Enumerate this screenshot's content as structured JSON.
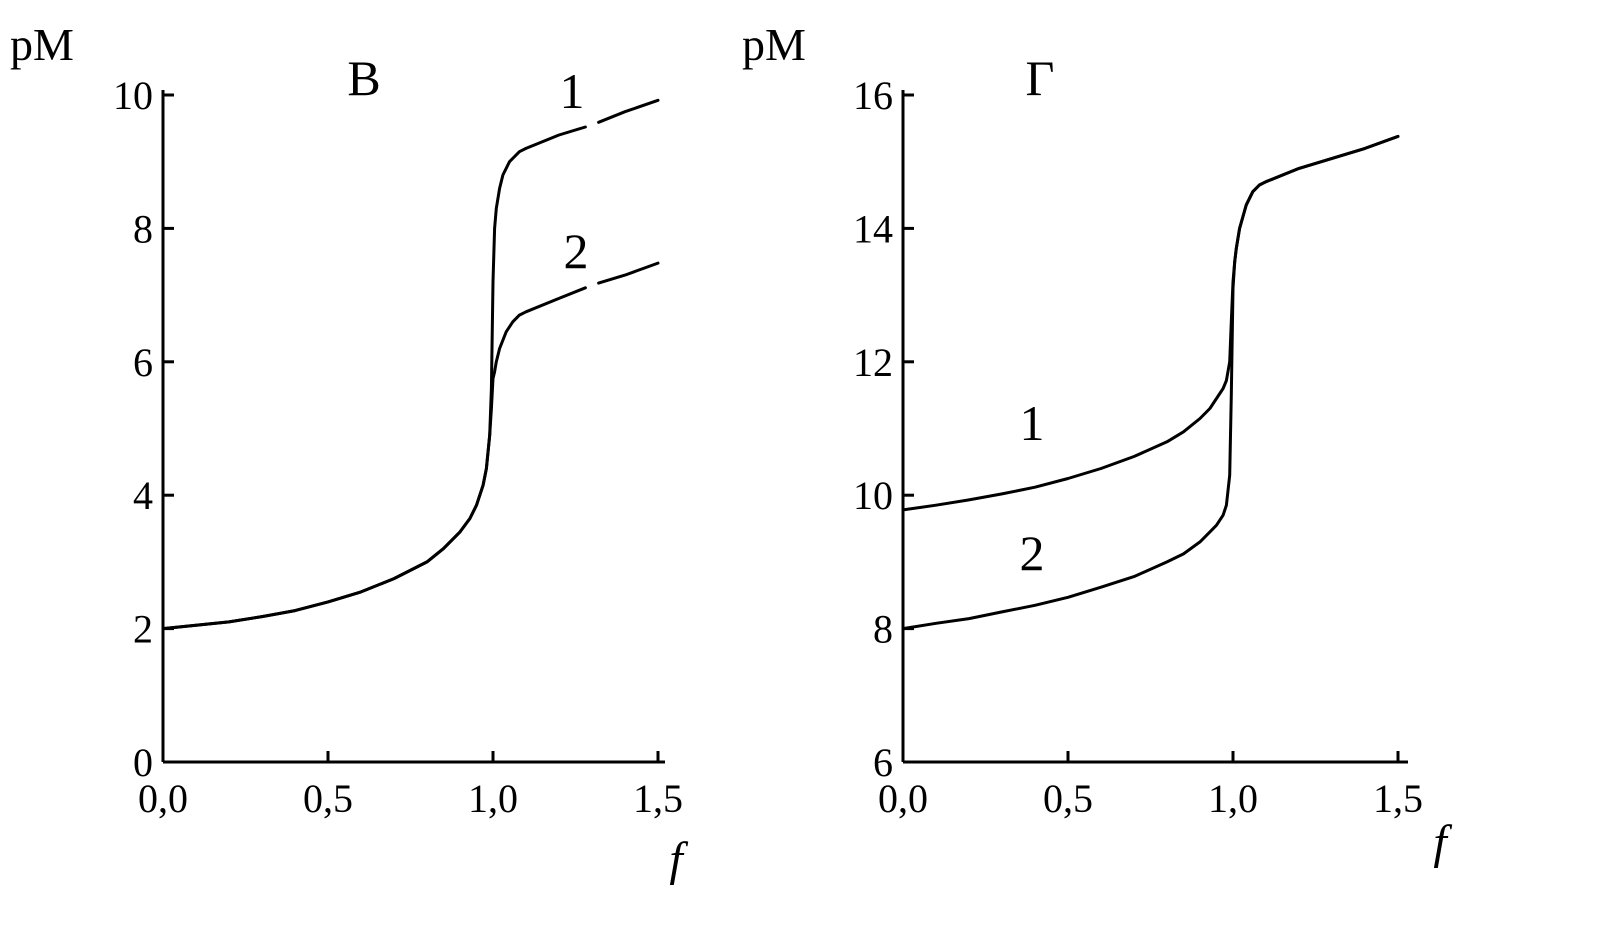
{
  "chart_data": [
    {
      "type": "line",
      "title": "В",
      "xlabel": "f",
      "ylabel": "pM",
      "xlim": [
        0,
        1.5
      ],
      "ylim": [
        0,
        10
      ],
      "xticks": [
        0,
        0.5,
        1.0,
        1.5
      ],
      "xtick_labels": [
        "0,0",
        "0,5",
        "1,0",
        "1,5"
      ],
      "yticks": [
        0,
        2,
        4,
        6,
        8,
        10
      ],
      "ytick_labels": [
        "0",
        "2",
        "4",
        "6",
        "8",
        "10"
      ],
      "grid": false,
      "series": [
        {
          "name": "1",
          "x": [
            0,
            0.1,
            0.2,
            0.3,
            0.4,
            0.5,
            0.6,
            0.7,
            0.8,
            0.85,
            0.9,
            0.93,
            0.95,
            0.97,
            0.98,
            0.99,
            0.995,
            1.0,
            1.005,
            1.01,
            1.02,
            1.03,
            1.05,
            1.08,
            1.1,
            1.2,
            1.3,
            1.4,
            1.5
          ],
          "y": [
            2.0,
            2.05,
            2.1,
            2.18,
            2.27,
            2.4,
            2.55,
            2.75,
            3.0,
            3.2,
            3.45,
            3.65,
            3.85,
            4.15,
            4.4,
            4.9,
            5.6,
            7.2,
            8.0,
            8.3,
            8.6,
            8.8,
            9.0,
            9.15,
            9.2,
            9.4,
            9.55,
            9.75,
            9.92
          ]
        },
        {
          "name": "2",
          "x": [
            0,
            0.1,
            0.2,
            0.3,
            0.4,
            0.5,
            0.6,
            0.7,
            0.8,
            0.85,
            0.9,
            0.93,
            0.95,
            0.97,
            0.98,
            0.99,
            0.995,
            1.0,
            1.005,
            1.01,
            1.02,
            1.04,
            1.06,
            1.08,
            1.1,
            1.2,
            1.3,
            1.4,
            1.5
          ],
          "y": [
            2.0,
            2.05,
            2.1,
            2.18,
            2.27,
            2.4,
            2.55,
            2.75,
            3.0,
            3.2,
            3.45,
            3.65,
            3.85,
            4.15,
            4.4,
            4.9,
            5.3,
            5.75,
            5.85,
            6.0,
            6.2,
            6.45,
            6.6,
            6.7,
            6.75,
            6.95,
            7.15,
            7.3,
            7.48
          ]
        }
      ],
      "curve_labels": [
        "1",
        "2"
      ]
    },
    {
      "type": "line",
      "title": "Г",
      "xlabel": "f",
      "ylabel": "pM",
      "xlim": [
        0,
        1.5
      ],
      "ylim": [
        6,
        16
      ],
      "xticks": [
        0,
        0.5,
        1.0,
        1.5
      ],
      "xtick_labels": [
        "0,0",
        "0,5",
        "1,0",
        "1,5"
      ],
      "yticks": [
        6,
        8,
        10,
        12,
        14,
        16
      ],
      "ytick_labels": [
        "6",
        "8",
        "10",
        "12",
        "14",
        "16"
      ],
      "grid": false,
      "series": [
        {
          "name": "1",
          "x": [
            0,
            0.1,
            0.2,
            0.3,
            0.4,
            0.5,
            0.6,
            0.7,
            0.8,
            0.85,
            0.9,
            0.93,
            0.95,
            0.97,
            0.98,
            0.99,
            0.995,
            1.0,
            1.005,
            1.01,
            1.02,
            1.04,
            1.06,
            1.08,
            1.1,
            1.2,
            1.3,
            1.4,
            1.5
          ],
          "y": [
            9.78,
            9.85,
            9.93,
            10.02,
            10.12,
            10.25,
            10.4,
            10.58,
            10.8,
            10.95,
            11.15,
            11.3,
            11.45,
            11.6,
            11.72,
            12.0,
            12.6,
            13.2,
            13.5,
            13.7,
            14.0,
            14.35,
            14.55,
            14.65,
            14.7,
            14.9,
            15.05,
            15.2,
            15.38
          ]
        },
        {
          "name": "2",
          "x": [
            0,
            0.1,
            0.2,
            0.3,
            0.4,
            0.5,
            0.6,
            0.7,
            0.8,
            0.85,
            0.9,
            0.93,
            0.95,
            0.97,
            0.98,
            0.99,
            0.995,
            1.0,
            1.005,
            1.01,
            1.02,
            1.04,
            1.06,
            1.08,
            1.1,
            1.2,
            1.3,
            1.4,
            1.5
          ],
          "y": [
            8.0,
            8.08,
            8.15,
            8.25,
            8.35,
            8.47,
            8.62,
            8.78,
            9.0,
            9.12,
            9.3,
            9.45,
            9.55,
            9.7,
            9.85,
            10.3,
            11.5,
            13.1,
            13.5,
            13.7,
            14.0,
            14.35,
            14.55,
            14.65,
            14.7,
            14.9,
            15.05,
            15.2,
            15.38
          ]
        }
      ],
      "curve_labels": [
        "1",
        "2"
      ]
    }
  ]
}
